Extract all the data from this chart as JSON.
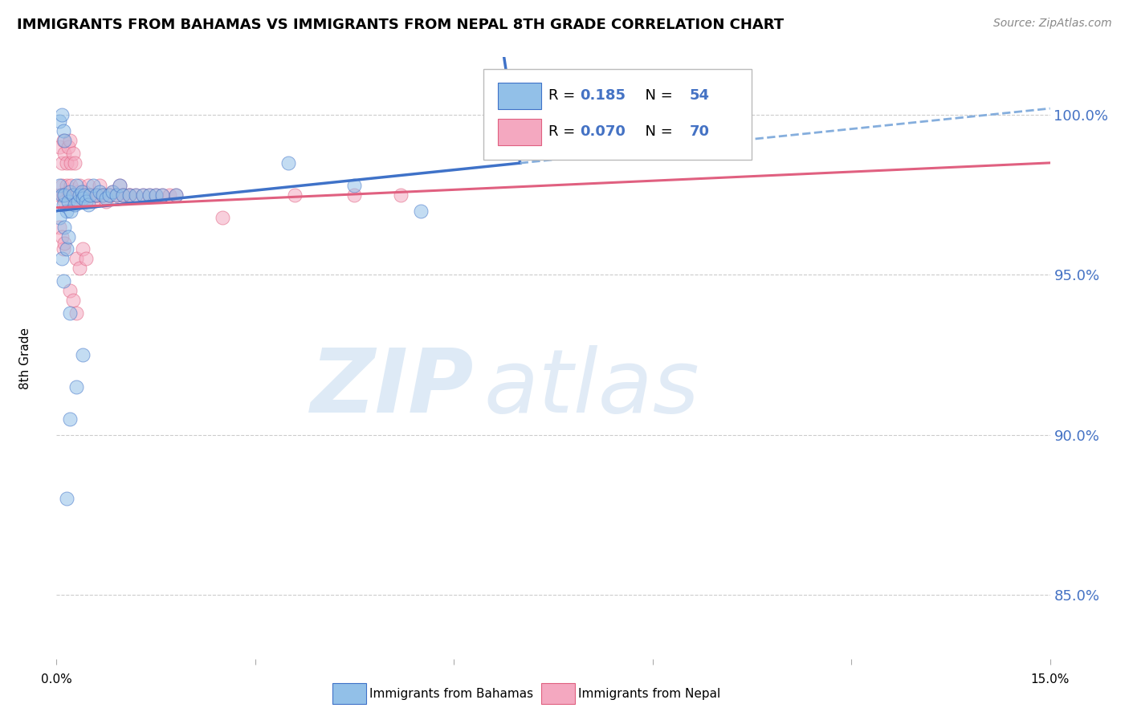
{
  "title": "IMMIGRANTS FROM BAHAMAS VS IMMIGRANTS FROM NEPAL 8TH GRADE CORRELATION CHART",
  "source": "Source: ZipAtlas.com",
  "ylabel": "8th Grade",
  "yticks": [
    85.0,
    90.0,
    95.0,
    100.0
  ],
  "ytick_labels": [
    "85.0%",
    "90.0%",
    "95.0%",
    "100.0%"
  ],
  "xmin": 0.0,
  "xmax": 15.0,
  "ymin": 83.0,
  "ymax": 101.8,
  "color_blue": "#92C0E8",
  "color_pink": "#F4A8C0",
  "line_blue": "#3F72C8",
  "line_pink": "#E06080",
  "line_blue_dashed": "#85AEDD",
  "legend_label1": "Immigrants from Bahamas",
  "legend_label2": "Immigrants from Nepal",
  "bahamas_x": [
    0.05,
    0.08,
    0.1,
    0.12,
    0.15,
    0.18,
    0.2,
    0.22,
    0.25,
    0.28,
    0.3,
    0.32,
    0.35,
    0.38,
    0.4,
    0.42,
    0.45,
    0.48,
    0.5,
    0.55,
    0.6,
    0.65,
    0.7,
    0.75,
    0.8,
    0.85,
    0.9,
    0.95,
    1.0,
    1.1,
    1.2,
    1.3,
    1.4,
    1.5,
    1.6,
    0.05,
    0.08,
    0.1,
    0.12,
    0.15,
    0.18,
    0.2,
    0.05,
    0.08,
    0.1,
    0.12,
    1.8,
    3.5,
    4.5,
    5.5,
    0.4,
    0.3,
    0.2,
    0.15
  ],
  "bahamas_y": [
    97.8,
    97.5,
    97.2,
    97.5,
    97.0,
    97.3,
    97.6,
    97.0,
    97.5,
    97.2,
    97.8,
    97.3,
    97.5,
    97.6,
    97.4,
    97.5,
    97.3,
    97.2,
    97.5,
    97.8,
    97.5,
    97.6,
    97.5,
    97.4,
    97.5,
    97.6,
    97.5,
    97.8,
    97.5,
    97.5,
    97.5,
    97.5,
    97.5,
    97.5,
    97.5,
    96.8,
    95.5,
    94.8,
    96.5,
    95.8,
    96.2,
    93.8,
    99.8,
    100.0,
    99.5,
    99.2,
    97.5,
    98.5,
    97.8,
    97.0,
    92.5,
    91.5,
    90.5,
    88.0
  ],
  "nepal_x": [
    0.05,
    0.08,
    0.1,
    0.12,
    0.15,
    0.18,
    0.2,
    0.22,
    0.25,
    0.28,
    0.3,
    0.32,
    0.35,
    0.38,
    0.4,
    0.42,
    0.45,
    0.48,
    0.5,
    0.55,
    0.6,
    0.65,
    0.7,
    0.75,
    0.8,
    0.85,
    0.9,
    0.95,
    1.0,
    1.1,
    1.2,
    1.3,
    1.4,
    1.5,
    1.6,
    1.7,
    0.05,
    0.08,
    0.1,
    0.12,
    0.15,
    0.18,
    0.2,
    0.22,
    0.25,
    0.28,
    0.05,
    0.08,
    0.1,
    0.12,
    0.3,
    0.35,
    0.4,
    0.45,
    3.6,
    4.5,
    5.2,
    0.2,
    0.25,
    0.3,
    1.8,
    2.5,
    0.5,
    0.55,
    0.6,
    0.7,
    0.8,
    0.9,
    1.0,
    1.1
  ],
  "nepal_y": [
    97.5,
    97.8,
    97.5,
    97.3,
    97.8,
    97.6,
    97.5,
    97.8,
    97.5,
    97.3,
    97.5,
    97.6,
    97.8,
    97.5,
    97.3,
    97.6,
    97.5,
    97.8,
    97.5,
    97.3,
    97.5,
    97.8,
    97.5,
    97.3,
    97.5,
    97.6,
    97.5,
    97.8,
    97.5,
    97.5,
    97.5,
    97.5,
    97.5,
    97.5,
    97.5,
    97.5,
    99.0,
    98.5,
    99.2,
    98.8,
    98.5,
    99.0,
    99.2,
    98.5,
    98.8,
    98.5,
    96.5,
    96.2,
    95.8,
    96.0,
    95.5,
    95.2,
    95.8,
    95.5,
    97.5,
    97.5,
    97.5,
    94.5,
    94.2,
    93.8,
    97.5,
    96.8,
    97.5,
    97.5,
    97.5,
    97.5,
    97.5,
    97.5,
    97.5,
    97.5
  ],
  "blue_line_x0": 0.0,
  "blue_line_y0": 97.0,
  "blue_line_x1": 15.0,
  "blue_line_y1": 100.2,
  "blue_solid_xmax": 7.0,
  "pink_line_x0": 0.0,
  "pink_line_y0": 97.1,
  "pink_line_x1": 15.0,
  "pink_line_y1": 98.5
}
